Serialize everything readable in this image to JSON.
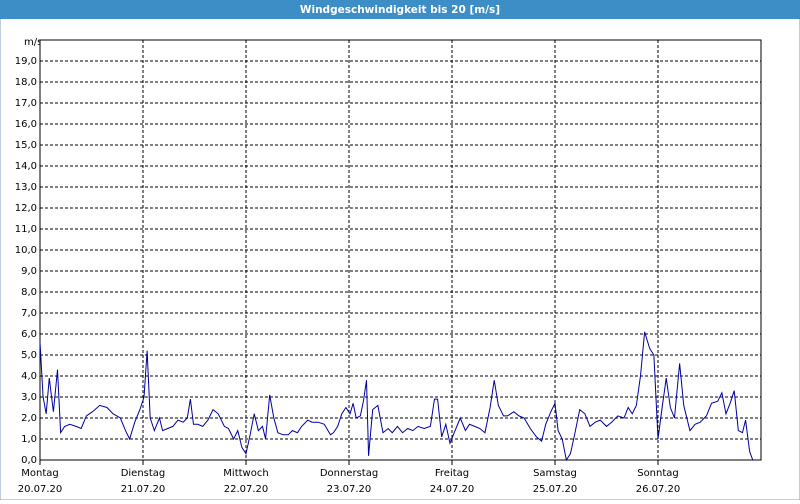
{
  "chart_data": {
    "type": "line",
    "title": "Windgeschwindigkeit bis 20 [m/s]",
    "y_unit": "m/s",
    "xlim": [
      0,
      7
    ],
    "xticks": [
      {
        "value": 0,
        "label": "Montag"
      },
      {
        "value": 1,
        "label": "Dienstag"
      },
      {
        "value": 2,
        "label": "Mittwoch"
      },
      {
        "value": 3,
        "label": "Donnerstag"
      },
      {
        "value": 4,
        "label": "Freitag"
      },
      {
        "value": 5,
        "label": "Samstag"
      },
      {
        "value": 6,
        "label": "Sonntag"
      }
    ],
    "xtick_dates": [
      "20.07.20",
      "21.07.20",
      "22.07.20",
      "23.07.20",
      "24.07.20",
      "25.07.20",
      "26.07.20"
    ],
    "ylim": [
      0,
      20
    ],
    "yticks": [
      {
        "value": 0,
        "label": "0,0"
      },
      {
        "value": 1,
        "label": "1,0"
      },
      {
        "value": 2,
        "label": "2,0"
      },
      {
        "value": 3,
        "label": "3,0"
      },
      {
        "value": 4,
        "label": "4,0"
      },
      {
        "value": 5,
        "label": "5,0"
      },
      {
        "value": 6,
        "label": "6,0"
      },
      {
        "value": 7,
        "label": "7,0"
      },
      {
        "value": 8,
        "label": "8,0"
      },
      {
        "value": 9,
        "label": "9,0"
      },
      {
        "value": 10,
        "label": "10,0"
      },
      {
        "value": 11,
        "label": "11,0"
      },
      {
        "value": 12,
        "label": "12,0"
      },
      {
        "value": 13,
        "label": "13,0"
      },
      {
        "value": 14,
        "label": "14,0"
      },
      {
        "value": 15,
        "label": "15,0"
      },
      {
        "value": 16,
        "label": "16,0"
      },
      {
        "value": 17,
        "label": "17,0"
      },
      {
        "value": 18,
        "label": "18,0"
      },
      {
        "value": 19,
        "label": "19,0"
      }
    ],
    "grid": true,
    "color": "#0000a0",
    "x": [
      0,
      0.03,
      0.06,
      0.09,
      0.13,
      0.17,
      0.2,
      0.24,
      0.29,
      0.35,
      0.4,
      0.45,
      0.51,
      0.58,
      0.65,
      0.71,
      0.78,
      0.83,
      0.87,
      0.92,
      0.97,
      1.01,
      1.04,
      1.07,
      1.11,
      1.16,
      1.19,
      1.24,
      1.29,
      1.34,
      1.39,
      1.43,
      1.46,
      1.49,
      1.53,
      1.58,
      1.63,
      1.68,
      1.73,
      1.79,
      1.83,
      1.88,
      1.92,
      1.96,
      2.0,
      2.04,
      2.08,
      2.12,
      2.16,
      2.19,
      2.23,
      2.27,
      2.31,
      2.36,
      2.41,
      2.45,
      2.5,
      2.54,
      2.6,
      2.64,
      2.7,
      2.76,
      2.82,
      2.85,
      2.89,
      2.93,
      2.97,
      3.01,
      3.04,
      3.07,
      3.11,
      3.14,
      3.17,
      3.19,
      3.23,
      3.28,
      3.33,
      3.38,
      3.42,
      3.47,
      3.52,
      3.57,
      3.62,
      3.67,
      3.73,
      3.79,
      3.83,
      3.86,
      3.9,
      3.94,
      3.98,
      4.03,
      4.08,
      4.13,
      4.17,
      4.22,
      4.27,
      4.32,
      4.37,
      4.41,
      4.45,
      4.5,
      4.54,
      4.6,
      4.65,
      4.7,
      4.76,
      4.82,
      4.87,
      4.91,
      4.96,
      5.0,
      5.03,
      5.07,
      5.11,
      5.15,
      5.19,
      5.24,
      5.29,
      5.34,
      5.39,
      5.44,
      5.5,
      5.55,
      5.61,
      5.67,
      5.71,
      5.75,
      5.79,
      5.83,
      5.87,
      5.92,
      5.96,
      6.0,
      6.04,
      6.08,
      6.12,
      6.16,
      6.21,
      6.25,
      6.31,
      6.36,
      6.41,
      6.47,
      6.52,
      6.58,
      6.62,
      6.66,
      6.7,
      6.74,
      6.78,
      6.82,
      6.85,
      6.89,
      6.92
    ],
    "values": [
      5.6,
      3.0,
      2.2,
      3.9,
      2.3,
      4.3,
      1.3,
      1.6,
      1.7,
      1.6,
      1.5,
      2.1,
      2.3,
      2.6,
      2.5,
      2.2,
      2.0,
      1.4,
      1.0,
      1.8,
      2.4,
      3.0,
      5.2,
      2.0,
      1.4,
      2.0,
      1.4,
      1.5,
      1.6,
      1.9,
      1.8,
      2.0,
      2.9,
      1.7,
      1.7,
      1.6,
      1.9,
      2.4,
      2.2,
      1.6,
      1.5,
      1.0,
      1.4,
      0.6,
      0.3,
      1.2,
      2.2,
      1.4,
      1.6,
      1.0,
      3.1,
      2.0,
      1.3,
      1.2,
      1.2,
      1.4,
      1.3,
      1.6,
      1.9,
      1.8,
      1.8,
      1.7,
      1.2,
      1.3,
      1.6,
      2.2,
      2.5,
      2.2,
      2.7,
      2.0,
      2.1,
      2.8,
      3.8,
      0.2,
      2.4,
      2.6,
      1.3,
      1.5,
      1.3,
      1.6,
      1.3,
      1.5,
      1.4,
      1.6,
      1.5,
      1.6,
      2.9,
      2.9,
      1.1,
      1.7,
      0.8,
      1.4,
      2.0,
      1.4,
      1.7,
      1.6,
      1.5,
      1.3,
      2.5,
      3.8,
      2.6,
      2.1,
      2.1,
      2.3,
      2.1,
      2.0,
      1.5,
      1.1,
      0.9,
      1.7,
      2.3,
      2.7,
      1.4,
      1.0,
      0.0,
      0.3,
      1.2,
      2.4,
      2.2,
      1.6,
      1.8,
      1.9,
      1.6,
      1.8,
      2.1,
      2.0,
      2.5,
      2.2,
      2.6,
      4.0,
      6.1,
      5.3,
      5.0,
      1.0,
      2.5,
      3.9,
      2.5,
      2.0,
      4.6,
      2.6,
      1.4,
      1.7,
      1.8,
      2.1,
      2.7,
      2.8,
      3.2,
      2.2,
      2.7,
      3.3,
      1.4,
      1.3,
      1.9,
      0.4,
      0.0
    ]
  }
}
